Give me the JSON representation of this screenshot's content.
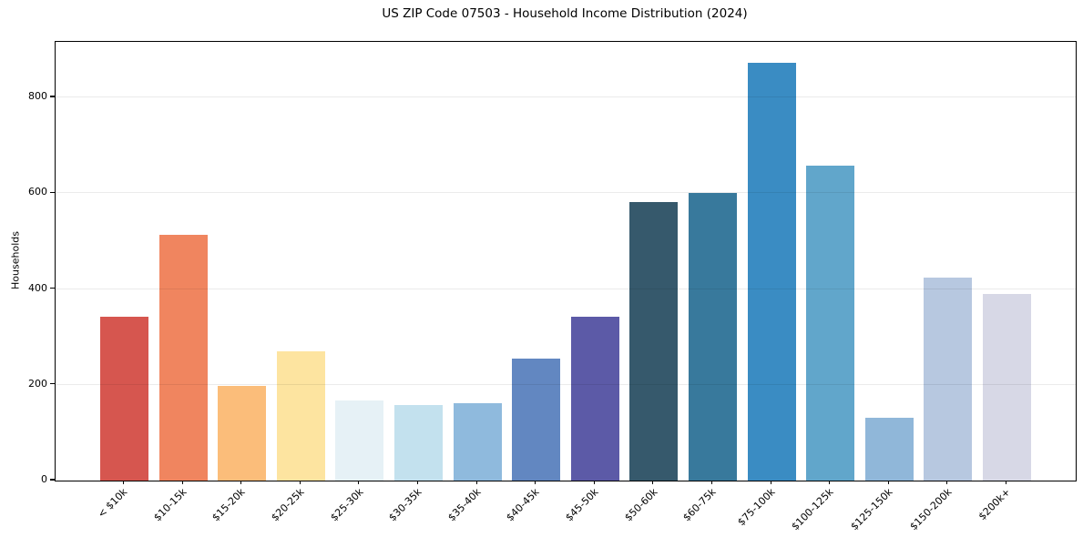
{
  "chart_data": {
    "type": "bar",
    "title": "US ZIP Code 07503 - Household Income Distribution (2024)",
    "xlabel": "",
    "ylabel": "Households",
    "categories": [
      "< $10k",
      "$10-15k",
      "$15-20k",
      "$20-25k",
      "$25-30k",
      "$30-35k",
      "$35-40k",
      "$40-45k",
      "$45-50k",
      "$50-60k",
      "$60-75k",
      "$75-100k",
      "$100-125k",
      "$125-150k",
      "$150-200k",
      "$200k+"
    ],
    "values": [
      343,
      513,
      198,
      270,
      167,
      157,
      161,
      255,
      343,
      582,
      600,
      872,
      658,
      131,
      423,
      389
    ],
    "bar_colors": [
      "#d6564f",
      "#f0855f",
      "#fbbd7a",
      "#fde4a0",
      "#e6f1f6",
      "#c3e1ee",
      "#8fbadd",
      "#6287c1",
      "#5c5aa7",
      "#36596c",
      "#38799c",
      "#3a8cc3",
      "#61a6cb",
      "#90b7d9",
      "#b7c8e0",
      "#d7d8e6"
    ],
    "ylim": [
      0,
      916
    ],
    "yticks": [
      0,
      200,
      400,
      600,
      800
    ],
    "grid": "horizontal",
    "legend": "none",
    "background_color": "#ffffff",
    "axis_color": "#000000",
    "x_tick_rotation": 45
  }
}
